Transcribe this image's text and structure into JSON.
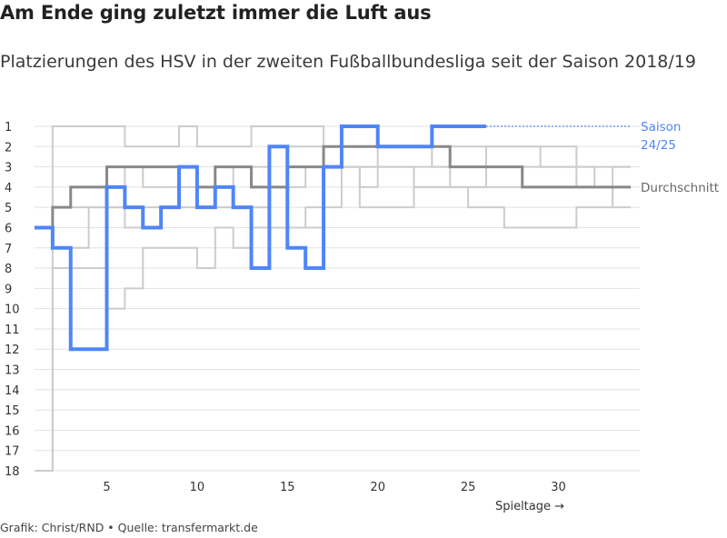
{
  "title": "Am Ende ging zuletzt immer die Luft aus",
  "subtitle": "Platzierungen des HSV in der zweiten Fußballbundesliga seit der Saison 2018/19",
  "footer": "Grafik: Christ/RND • Quelle: transfermarkt.de",
  "colors": {
    "historic": "#cccccc",
    "average": "#888888",
    "current": "#4f86f7",
    "grid": "#e2e2e2"
  },
  "chart_data": {
    "type": "line",
    "title": "Am Ende ging zuletzt immer die Luft aus",
    "subtitle": "Platzierungen des HSV in der zweiten Fußballbundesliga seit der Saison 2018/19",
    "xlabel": "Spieltage →",
    "ylabel": "",
    "xlim": [
      1,
      34
    ],
    "ylim": [
      1,
      18
    ],
    "y_inverted": true,
    "step": true,
    "grid": true,
    "x_ticks": [
      5,
      10,
      15,
      20,
      25,
      30
    ],
    "y_ticks": [
      1,
      2,
      3,
      4,
      5,
      6,
      7,
      8,
      9,
      10,
      11,
      12,
      13,
      14,
      15,
      16,
      17,
      18
    ],
    "series": [
      {
        "role": "historic",
        "values": [
          18,
          1,
          1,
          1,
          1,
          2,
          2,
          2,
          1,
          2,
          2,
          2,
          1,
          1,
          1,
          1,
          2,
          3,
          3,
          2,
          2,
          2,
          3,
          3,
          3,
          2,
          2,
          2,
          2,
          2,
          3,
          3,
          3,
          3
        ]
      },
      {
        "role": "historic",
        "values": [
          18,
          8,
          8,
          8,
          10,
          9,
          7,
          7,
          7,
          8,
          6,
          7,
          6,
          6,
          4,
          3,
          3,
          3,
          4,
          3,
          3,
          3,
          3,
          4,
          4,
          3,
          3,
          3,
          3,
          3,
          3,
          4,
          4,
          4
        ]
      },
      {
        "role": "historic",
        "values": [
          6,
          5,
          4,
          4,
          4,
          3,
          4,
          4,
          4,
          4,
          4,
          3,
          3,
          2,
          2,
          2,
          2,
          2,
          2,
          2,
          2,
          2,
          2,
          2,
          2,
          2,
          2,
          2,
          3,
          3,
          4,
          4,
          5,
          5
        ]
      },
      {
        "role": "historic",
        "values": [
          6,
          5,
          5,
          5,
          5,
          5,
          5,
          5,
          3,
          4,
          5,
          5,
          5,
          6,
          6,
          5,
          3,
          3,
          5,
          5,
          5,
          4,
          4,
          4,
          5,
          5,
          6,
          6,
          6,
          6,
          5,
          5,
          4,
          4
        ]
      },
      {
        "role": "historic",
        "values": [
          6,
          7,
          7,
          5,
          5,
          6,
          6,
          5,
          5,
          5,
          5,
          5,
          5,
          6,
          6,
          6,
          5,
          3,
          3,
          3,
          3,
          4,
          4,
          4,
          4,
          4,
          4,
          4,
          4,
          4,
          4,
          4,
          3,
          3
        ]
      },
      {
        "role": "average",
        "values": [
          6,
          5,
          4,
          4,
          3,
          3,
          3,
          3,
          3,
          4,
          3,
          3,
          4,
          4,
          3,
          3,
          2,
          2,
          2,
          2,
          2,
          2,
          2,
          3,
          3,
          3,
          3,
          4,
          4,
          4,
          4,
          4,
          4,
          4
        ]
      },
      {
        "role": "current",
        "name": "Saison 24/25",
        "values": [
          6,
          7,
          12,
          12,
          4,
          5,
          6,
          5,
          3,
          5,
          4,
          5,
          8,
          2,
          7,
          8,
          3,
          1,
          1,
          2,
          2,
          2,
          1,
          1,
          1,
          1
        ],
        "dotted_to": 34
      }
    ],
    "labels": {
      "current": "Saison 24/25",
      "average": "Durchschnitt"
    }
  }
}
